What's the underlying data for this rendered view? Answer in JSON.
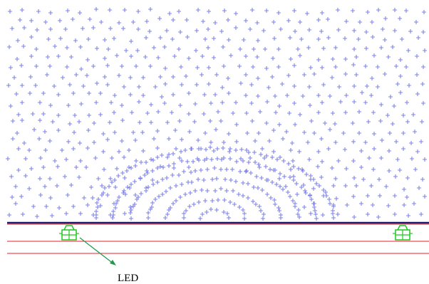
{
  "label": {
    "led": "LED"
  },
  "colors": {
    "dots": "#7f83e8",
    "plate_top": "#1b1b6b",
    "plate_lines": "#e8222a",
    "led": "#1ec81e",
    "arrow": "#1e9a4a",
    "background": "#ffffff"
  },
  "icons": {
    "dot_marker": "cross-dot-icon",
    "light_source": "led-icon"
  }
}
